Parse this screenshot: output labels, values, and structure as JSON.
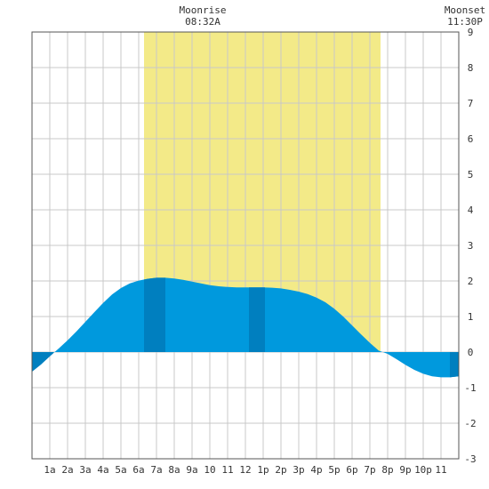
{
  "moonrise": {
    "label": "Moonrise",
    "time": "08:32A"
  },
  "moonset": {
    "label": "Moonset",
    "time": "11:30P"
  },
  "colors": {
    "daylight": "#f3ea88",
    "tide_fill": "#0099dd",
    "tide_dark": "#007fbf",
    "grid": "#c8c8c8",
    "border": "#555555"
  },
  "chart_data": {
    "type": "area",
    "title": "",
    "xlabel": "",
    "ylabel": "",
    "xlim": [
      0,
      24
    ],
    "ylim": [
      -3,
      9
    ],
    "y_ticks": [
      -3,
      -2,
      -1,
      0,
      1,
      2,
      3,
      4,
      5,
      6,
      7,
      8,
      9
    ],
    "x_ticks": [
      {
        "h": 1,
        "label": "1a"
      },
      {
        "h": 2,
        "label": "2a"
      },
      {
        "h": 3,
        "label": "3a"
      },
      {
        "h": 4,
        "label": "4a"
      },
      {
        "h": 5,
        "label": "5a"
      },
      {
        "h": 6,
        "label": "6a"
      },
      {
        "h": 7,
        "label": "7a"
      },
      {
        "h": 8,
        "label": "8a"
      },
      {
        "h": 9,
        "label": "9a"
      },
      {
        "h": 10,
        "label": "10"
      },
      {
        "h": 11,
        "label": "11"
      },
      {
        "h": 12,
        "label": "12"
      },
      {
        "h": 13,
        "label": "1p"
      },
      {
        "h": 14,
        "label": "2p"
      },
      {
        "h": 15,
        "label": "3p"
      },
      {
        "h": 16,
        "label": "4p"
      },
      {
        "h": 17,
        "label": "5p"
      },
      {
        "h": 18,
        "label": "6p"
      },
      {
        "h": 19,
        "label": "7p"
      },
      {
        "h": 20,
        "label": "8p"
      },
      {
        "h": 21,
        "label": "9p"
      },
      {
        "h": 22,
        "label": "10p"
      },
      {
        "h": 23,
        "label": "11"
      }
    ],
    "daylight": [
      6.3,
      19.6
    ],
    "dark_bands": [
      [
        0,
        1.2
      ],
      [
        6.3,
        7.5
      ],
      [
        12.2,
        13.1
      ],
      [
        23.5,
        24
      ]
    ],
    "tide_points": [
      [
        0,
        -0.55
      ],
      [
        0.5,
        -0.35
      ],
      [
        1.0,
        -0.12
      ],
      [
        1.5,
        0.1
      ],
      [
        2.0,
        0.33
      ],
      [
        2.5,
        0.58
      ],
      [
        3.0,
        0.85
      ],
      [
        3.5,
        1.12
      ],
      [
        4.0,
        1.38
      ],
      [
        4.5,
        1.62
      ],
      [
        5.0,
        1.8
      ],
      [
        5.5,
        1.93
      ],
      [
        6.0,
        2.01
      ],
      [
        6.5,
        2.06
      ],
      [
        7.0,
        2.09
      ],
      [
        7.5,
        2.09
      ],
      [
        8.0,
        2.07
      ],
      [
        8.5,
        2.03
      ],
      [
        9.0,
        1.98
      ],
      [
        9.5,
        1.93
      ],
      [
        10.0,
        1.88
      ],
      [
        10.5,
        1.85
      ],
      [
        11.0,
        1.83
      ],
      [
        11.5,
        1.82
      ],
      [
        12.0,
        1.82
      ],
      [
        12.5,
        1.82
      ],
      [
        13.0,
        1.82
      ],
      [
        13.5,
        1.81
      ],
      [
        14.0,
        1.79
      ],
      [
        14.5,
        1.75
      ],
      [
        15.0,
        1.7
      ],
      [
        15.5,
        1.63
      ],
      [
        16.0,
        1.53
      ],
      [
        16.5,
        1.4
      ],
      [
        17.0,
        1.22
      ],
      [
        17.5,
        1.0
      ],
      [
        18.0,
        0.75
      ],
      [
        18.5,
        0.5
      ],
      [
        19.0,
        0.26
      ],
      [
        19.5,
        0.04
      ],
      [
        20.0,
        -0.05
      ],
      [
        20.5,
        -0.2
      ],
      [
        21.0,
        -0.36
      ],
      [
        21.5,
        -0.5
      ],
      [
        22.0,
        -0.61
      ],
      [
        22.5,
        -0.68
      ],
      [
        23.0,
        -0.71
      ],
      [
        23.5,
        -0.71
      ],
      [
        24.0,
        -0.68
      ]
    ]
  }
}
